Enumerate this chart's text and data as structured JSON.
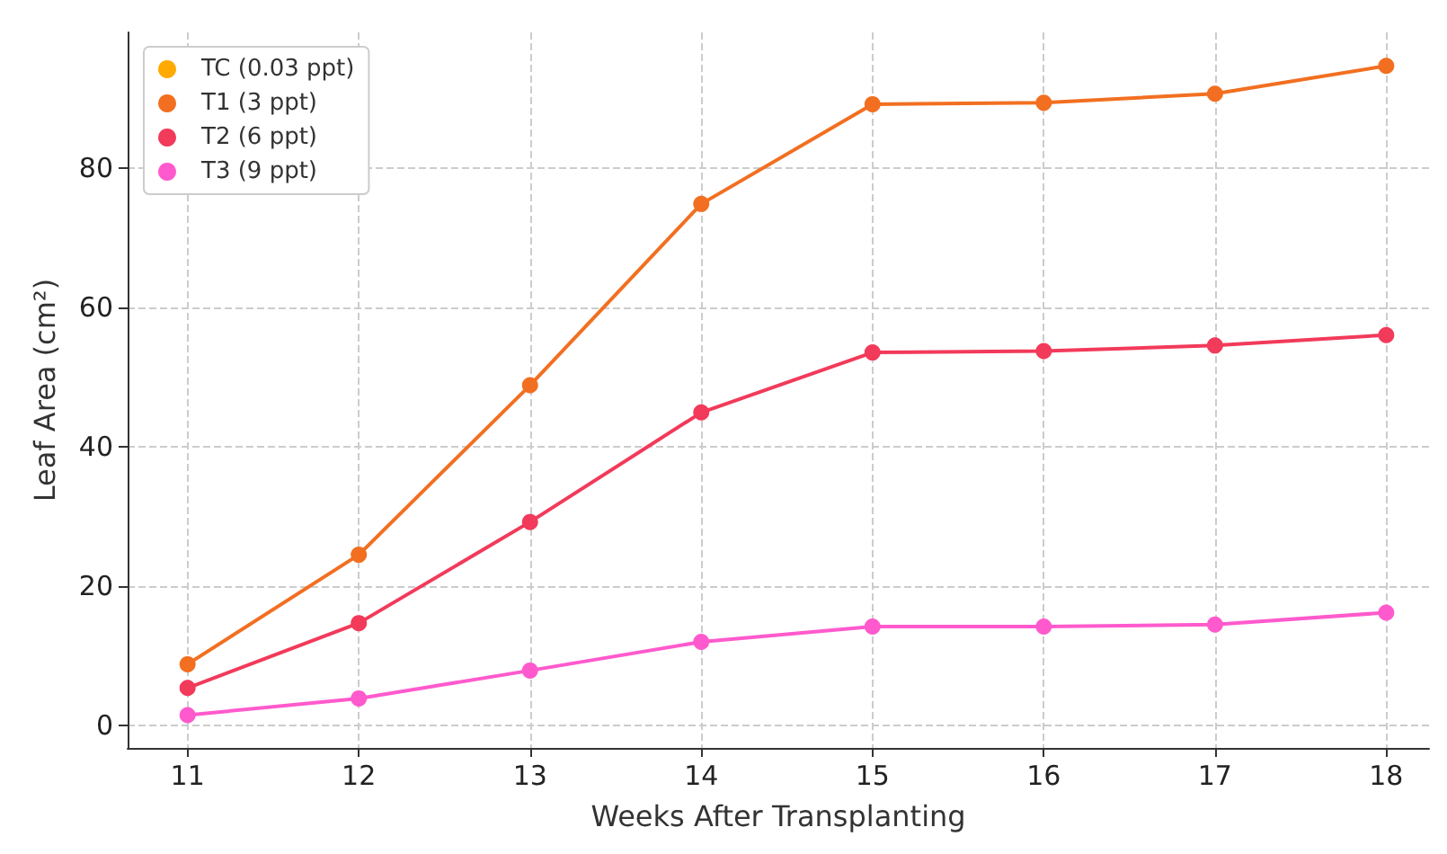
{
  "chart_data": {
    "type": "line",
    "xlabel": "Weeks After Transplanting",
    "ylabel": "Leaf Area (cm²)",
    "x": [
      11,
      12,
      13,
      14,
      15,
      16,
      17,
      18
    ],
    "series": [
      {
        "name": "TC (0.03 ppt)",
        "color": "#ffaa00",
        "values": [
          null,
          null,
          null,
          null,
          null,
          null,
          null,
          null
        ]
      },
      {
        "name": "T1 (3 ppt)",
        "color": "#f26f21",
        "values": [
          8.8,
          24.5,
          48.8,
          74.8,
          89.1,
          89.3,
          90.6,
          94.6
        ]
      },
      {
        "name": "T2 (6 ppt)",
        "color": "#f23a5a",
        "values": [
          5.4,
          14.7,
          29.2,
          44.9,
          53.5,
          53.7,
          54.5,
          56.0
        ]
      },
      {
        "name": "T3 (9 ppt)",
        "color": "#ff5acd",
        "values": [
          1.5,
          3.9,
          7.9,
          12.0,
          14.2,
          14.2,
          14.5,
          16.2
        ]
      }
    ],
    "xlim": [
      10.65,
      18.25
    ],
    "xticks": [
      11,
      12,
      13,
      14,
      15,
      16,
      17,
      18
    ],
    "ylim": [
      -3.2,
      99.4
    ],
    "yticks": [
      0,
      20,
      40,
      60,
      80
    ],
    "grid": true,
    "legend": "top left",
    "marker": "circle",
    "line_style": "solid"
  }
}
